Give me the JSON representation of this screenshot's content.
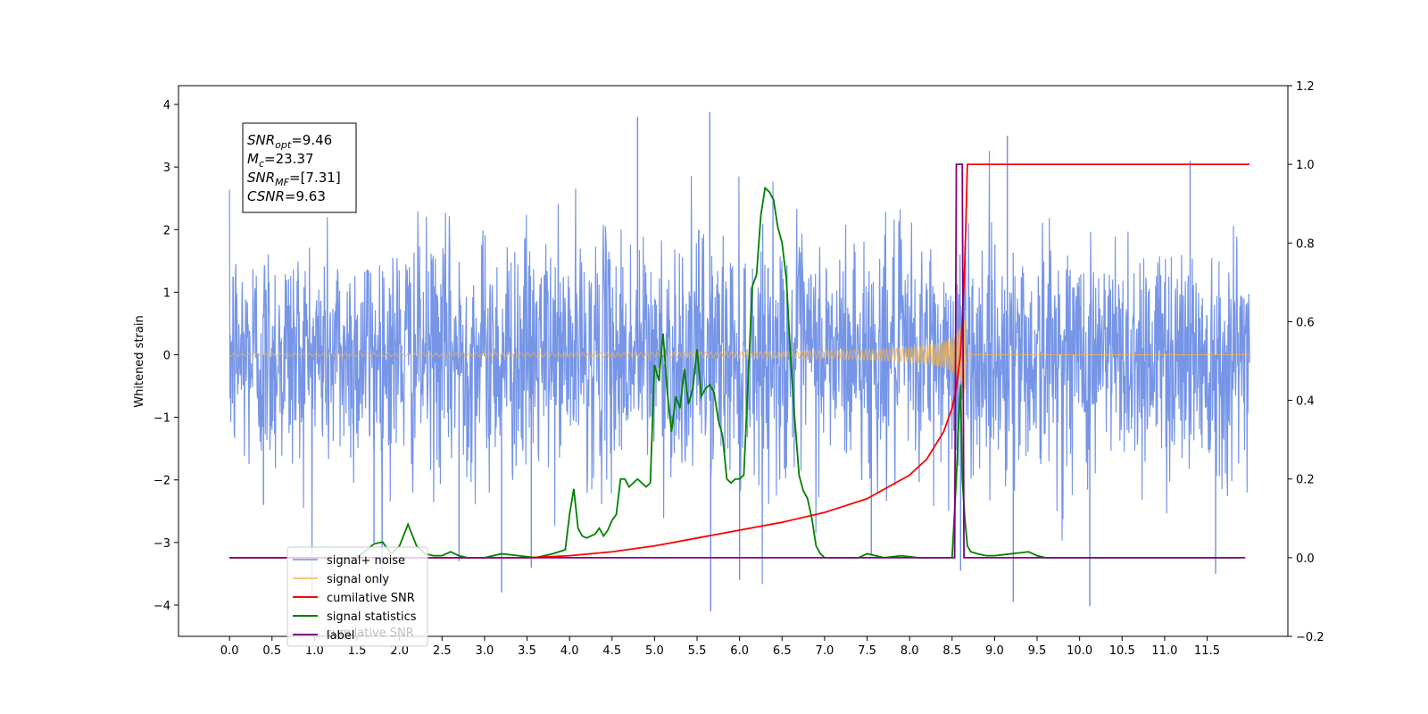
{
  "chart_data": {
    "type": "line",
    "ylabel": "Whitened strain",
    "xlim": [
      -0.6,
      12.45
    ],
    "ylim_left": [
      -4.5,
      4.3
    ],
    "ylim_right": [
      -0.2,
      1.2
    ],
    "x_ticks": [
      0.0,
      0.5,
      1.0,
      1.5,
      2.0,
      2.5,
      3.0,
      3.5,
      4.0,
      4.5,
      5.0,
      5.5,
      6.0,
      6.5,
      7.0,
      7.5,
      8.0,
      8.5,
      9.0,
      9.5,
      10.0,
      10.5,
      11.0,
      11.5
    ],
    "x_tick_labels": [
      "0.0",
      "0.5",
      "1.0",
      "1.5",
      "2.0",
      "2.5",
      "3.0",
      "3.5",
      "4.0",
      "4.5",
      "5.0",
      "5.5",
      "6.0",
      "6.5",
      "7.0",
      "7.5",
      "8.0",
      "8.5",
      "9.0",
      "9.5",
      "10.0",
      "10.5",
      "11.0",
      "11.5"
    ],
    "y_ticks_left": [
      -4,
      -3,
      -2,
      -1,
      0,
      1,
      2,
      3,
      4
    ],
    "y_tick_labels_left": [
      "−4",
      "−3",
      "−2",
      "−1",
      "0",
      "1",
      "2",
      "3",
      "4"
    ],
    "y_ticks_right": [
      -0.2,
      0.0,
      0.2,
      0.4,
      0.6,
      0.8,
      1.0,
      1.2
    ],
    "y_tick_labels_right": [
      "−0.2",
      "0.0",
      "0.2",
      "0.4",
      "0.6",
      "0.8",
      "1.0",
      "1.2"
    ],
    "grid": false,
    "legend_placement": "lower-left",
    "annotation": {
      "lines": [
        {
          "main": "SNR",
          "sub": "opt",
          "rest": "=9.46"
        },
        {
          "main": "M",
          "sub": "c",
          "rest": "=23.37"
        },
        {
          "main": "SNR",
          "sub": "MF",
          "rest": "=[7.31]"
        },
        {
          "main": "CSNR",
          "sub": "",
          "rest": "=9.63"
        }
      ]
    },
    "series": [
      {
        "name": "signal+ noise",
        "axis": "left",
        "color": "#6f8fe6",
        "description_type": "noise",
        "x_range": [
          0.0,
          12.0
        ],
        "std": 1.0,
        "noise_min": -4.1,
        "noise_max": 3.88
      },
      {
        "name": "signal only",
        "axis": "left",
        "color": "#f5b44a",
        "description_type": "chirp",
        "x_range": [
          0.0,
          8.68
        ],
        "merger_x": 8.65,
        "peak_amplitude": 0.75
      },
      {
        "name": "cumilative SNR",
        "axis": "right",
        "color": "#ff0000",
        "x": [
          0.0,
          3.5,
          4.0,
          4.5,
          5.0,
          5.5,
          6.0,
          6.5,
          7.0,
          7.5,
          8.0,
          8.2,
          8.4,
          8.5,
          8.55,
          8.6,
          8.63,
          8.65,
          8.68,
          12.0
        ],
        "y": [
          0.0,
          0.0,
          0.005,
          0.015,
          0.03,
          0.05,
          0.07,
          0.09,
          0.115,
          0.15,
          0.21,
          0.25,
          0.32,
          0.38,
          0.43,
          0.52,
          0.65,
          0.75,
          1.0,
          1.0
        ]
      },
      {
        "name": "signal statistics",
        "axis": "right",
        "color": "#008000",
        "x": [
          0.0,
          1.5,
          1.7,
          1.8,
          1.9,
          2.0,
          2.1,
          2.2,
          2.3,
          2.4,
          2.5,
          2.6,
          2.7,
          2.8,
          2.9,
          3.0,
          3.2,
          3.4,
          3.6,
          3.8,
          3.95,
          4.0,
          4.05,
          4.1,
          4.15,
          4.2,
          4.3,
          4.35,
          4.4,
          4.45,
          4.5,
          4.55,
          4.6,
          4.65,
          4.7,
          4.75,
          4.8,
          4.85,
          4.9,
          4.95,
          5.0,
          5.05,
          5.1,
          5.15,
          5.2,
          5.25,
          5.3,
          5.35,
          5.4,
          5.45,
          5.5,
          5.55,
          5.6,
          5.65,
          5.7,
          5.75,
          5.8,
          5.85,
          5.9,
          5.95,
          6.0,
          6.05,
          6.1,
          6.15,
          6.2,
          6.25,
          6.3,
          6.35,
          6.4,
          6.45,
          6.5,
          6.55,
          6.6,
          6.65,
          6.7,
          6.75,
          6.8,
          6.85,
          6.9,
          6.95,
          7.0,
          7.05,
          7.1,
          7.15,
          7.2,
          7.25,
          7.3,
          7.35,
          7.4,
          7.5,
          7.7,
          7.9,
          8.1,
          8.3,
          8.5,
          8.55,
          8.58,
          8.6,
          8.62,
          8.65,
          8.68,
          8.72,
          8.8,
          8.9,
          9.0,
          9.2,
          9.4,
          9.5,
          9.6,
          9.8,
          10.0,
          11.0,
          11.9
        ],
        "y": [
          0.0,
          0.0,
          0.035,
          0.04,
          0.01,
          0.03,
          0.085,
          0.03,
          0.01,
          0.005,
          0.005,
          0.015,
          0.005,
          0.0,
          0.0,
          0.0,
          0.01,
          0.005,
          0.0,
          0.01,
          0.02,
          0.11,
          0.175,
          0.075,
          0.055,
          0.05,
          0.06,
          0.075,
          0.055,
          0.07,
          0.095,
          0.11,
          0.2,
          0.2,
          0.18,
          0.19,
          0.2,
          0.19,
          0.18,
          0.19,
          0.49,
          0.45,
          0.57,
          0.42,
          0.32,
          0.41,
          0.38,
          0.48,
          0.39,
          0.43,
          0.53,
          0.41,
          0.43,
          0.44,
          0.42,
          0.35,
          0.31,
          0.2,
          0.19,
          0.2,
          0.2,
          0.21,
          0.45,
          0.69,
          0.72,
          0.87,
          0.94,
          0.93,
          0.91,
          0.84,
          0.8,
          0.71,
          0.51,
          0.35,
          0.21,
          0.17,
          0.15,
          0.1,
          0.03,
          0.01,
          0.0,
          0.0,
          0.0,
          0.0,
          0.0,
          0.0,
          0.0,
          0.0,
          0.0,
          0.01,
          0.0,
          0.005,
          0.0,
          0.0,
          0.0,
          0.2,
          0.36,
          0.44,
          0.2,
          0.1,
          0.03,
          0.015,
          0.01,
          0.005,
          0.005,
          0.01,
          0.015,
          0.005,
          0.0,
          0.0,
          0.0,
          0.0,
          0.0
        ]
      },
      {
        "name": "label",
        "axis": "right",
        "color": "#800080",
        "x": [
          0.0,
          8.53,
          8.55,
          8.62,
          8.64,
          11.95
        ],
        "y": [
          0.0,
          0.0,
          1.0,
          1.0,
          0.0,
          0.0
        ]
      }
    ],
    "legend_entries": [
      "signal+ noise",
      "signal only",
      "cumilative SNR",
      "signal statistics",
      "label"
    ],
    "legend_overlap_text": "cumilative SNR"
  }
}
